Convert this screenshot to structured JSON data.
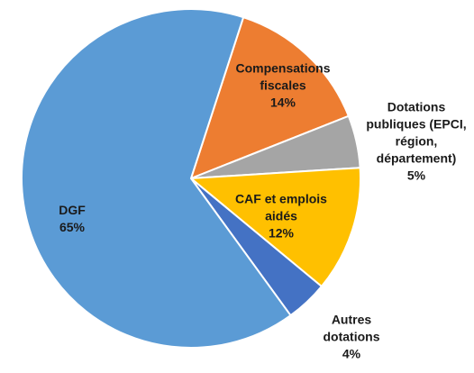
{
  "chart_data": {
    "type": "pie",
    "categories": [
      "Compensations fiscales",
      "Dotations publiques (EPCI, région, département)",
      "CAF et emplois aidés",
      "Autres dotations",
      "DGF"
    ],
    "values": [
      14,
      5,
      12,
      4,
      65
    ],
    "value_labels": [
      "14%",
      "5%",
      "12%",
      "4%",
      "65%"
    ],
    "colors": [
      "#ed7d31",
      "#a5a5a5",
      "#ffc000",
      "#4472c4",
      "#5b9bd5"
    ]
  }
}
